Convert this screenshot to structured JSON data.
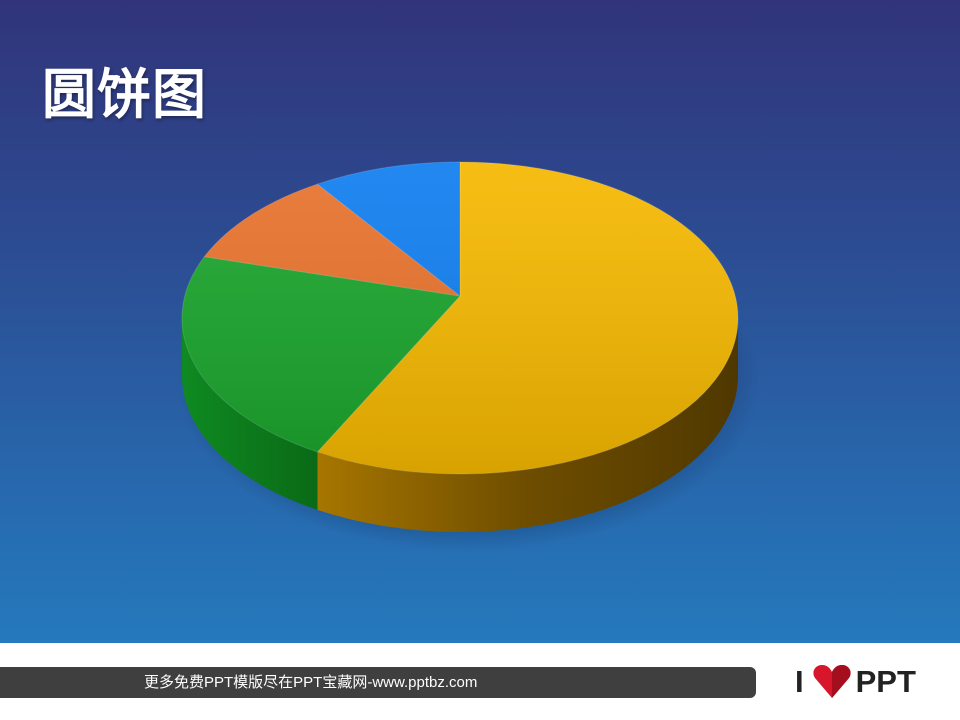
{
  "slide": {
    "title": "圆饼图"
  },
  "chart_data": {
    "type": "pie",
    "style": "3d",
    "start": "top, clockwise",
    "values": [
      8.2,
      3.2,
      1.4,
      1.2
    ],
    "colors": [
      "#f5b800",
      "#1aa52c",
      "#e8722c",
      "#0f7ef0"
    ],
    "side_colors": [
      "#8a6200",
      "#0f7a1e",
      "#a04a18",
      "#0a5cb0"
    ],
    "legend": "none",
    "data_labels": "none"
  },
  "footer": {
    "text": "更多免费PPT模版尽在PPT宝藏网-www.pptbz.com",
    "logo": {
      "left": "I",
      "right": "PPT",
      "heart_color": "#d7162b"
    }
  }
}
